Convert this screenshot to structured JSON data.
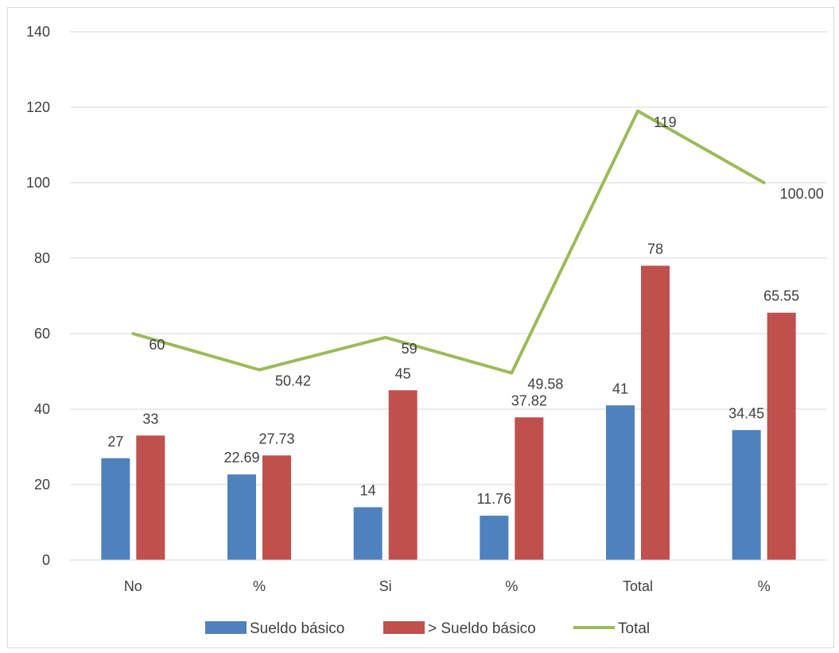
{
  "chart_data": {
    "type": "bar",
    "categories": [
      "No",
      "%",
      "Si",
      "%",
      "Total",
      "%"
    ],
    "series": [
      {
        "name": "Sueldo básico",
        "kind": "bar",
        "color": "#4f81bd",
        "values": [
          27,
          22.69,
          14,
          11.76,
          41,
          34.45
        ],
        "labels": [
          "27",
          "22.69",
          "14",
          "11.76",
          "41",
          "34.45"
        ]
      },
      {
        "name": "> Sueldo básico",
        "kind": "bar",
        "color": "#c0504d",
        "values": [
          33,
          27.73,
          45,
          37.82,
          78,
          65.55
        ],
        "labels": [
          "33",
          "27.73",
          "45",
          "37.82",
          "78",
          "65.55"
        ]
      },
      {
        "name": "Total",
        "kind": "line",
        "color": "#9bbb59",
        "values": [
          60,
          50.42,
          59,
          49.58,
          119,
          100.0
        ],
        "labels": [
          "60",
          "50.42",
          "59",
          "49.58",
          "119",
          "100.00"
        ]
      }
    ],
    "ylim": [
      0,
      140
    ],
    "yticks": [
      "0",
      "20",
      "40",
      "60",
      "80",
      "100",
      "120",
      "140"
    ],
    "grid": true,
    "legend_position": "bottom",
    "title": "",
    "xlabel": "",
    "ylabel": ""
  }
}
